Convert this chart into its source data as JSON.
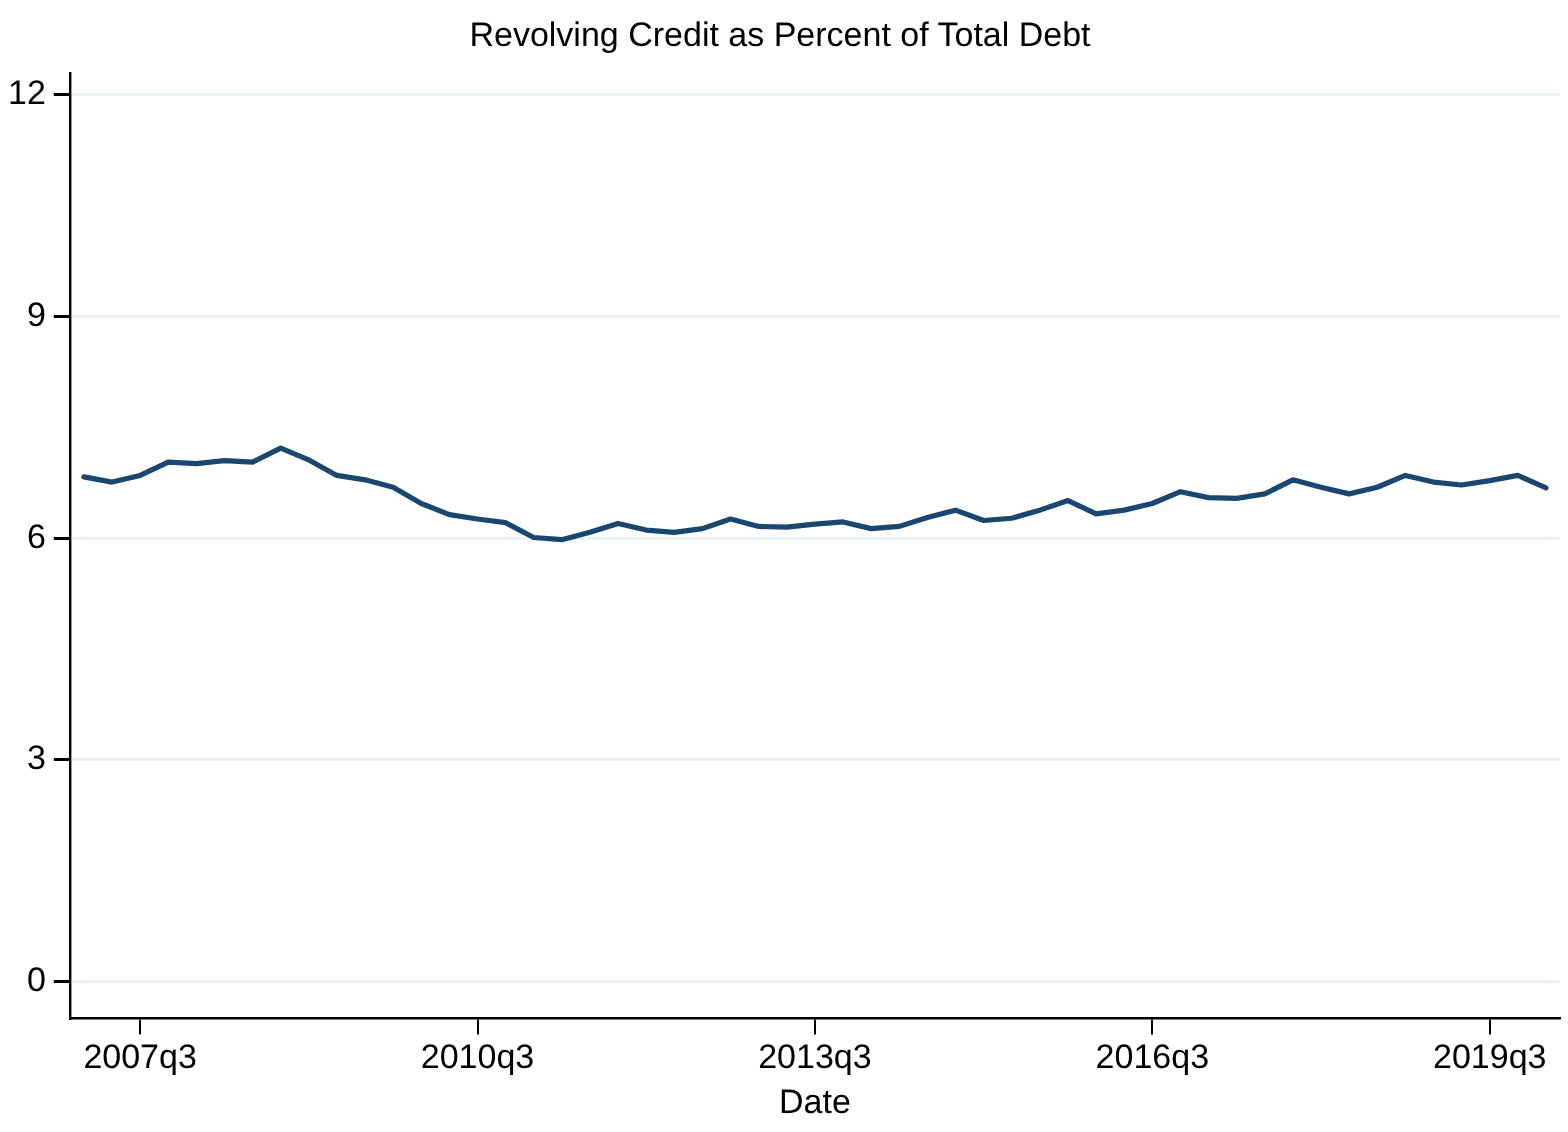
{
  "chart_data": {
    "type": "line",
    "title": "Revolving Credit as Percent of Total Debt",
    "xlabel": "Date",
    "categories": [
      null,
      null,
      "2007q3",
      null,
      null,
      null,
      null,
      null,
      null,
      null,
      null,
      null,
      null,
      null,
      "2010q3",
      null,
      null,
      null,
      null,
      null,
      null,
      null,
      null,
      null,
      null,
      null,
      "2013q3",
      null,
      null,
      null,
      null,
      null,
      null,
      null,
      null,
      null,
      null,
      null,
      "2016q3",
      null,
      null,
      null,
      null,
      null,
      null,
      null,
      null,
      null,
      null,
      null,
      "2019q3",
      null,
      null
    ],
    "series": [
      {
        "color": "#1a476f",
        "values": [
          6.83,
          6.76,
          6.85,
          7.03,
          7.01,
          7.05,
          7.03,
          7.22,
          7.06,
          6.85,
          6.79,
          6.69,
          6.47,
          6.32,
          6.26,
          6.21,
          6.01,
          5.98,
          6.08,
          6.2,
          6.11,
          6.08,
          6.13,
          6.26,
          6.16,
          6.15,
          6.19,
          6.22,
          6.13,
          6.16,
          6.28,
          6.38,
          6.24,
          6.27,
          6.38,
          6.51,
          6.33,
          6.38,
          6.47,
          6.63,
          6.55,
          6.54,
          6.6,
          6.79,
          6.69,
          6.6,
          6.69,
          6.85,
          6.76,
          6.72,
          6.78,
          6.85,
          6.68
        ]
      }
    ],
    "ylim": [
      -0.5,
      12.3
    ],
    "yticks": [
      0,
      3,
      6,
      9,
      12
    ],
    "grid": "y",
    "legend": false,
    "marker": "none",
    "line_style": "solid"
  }
}
